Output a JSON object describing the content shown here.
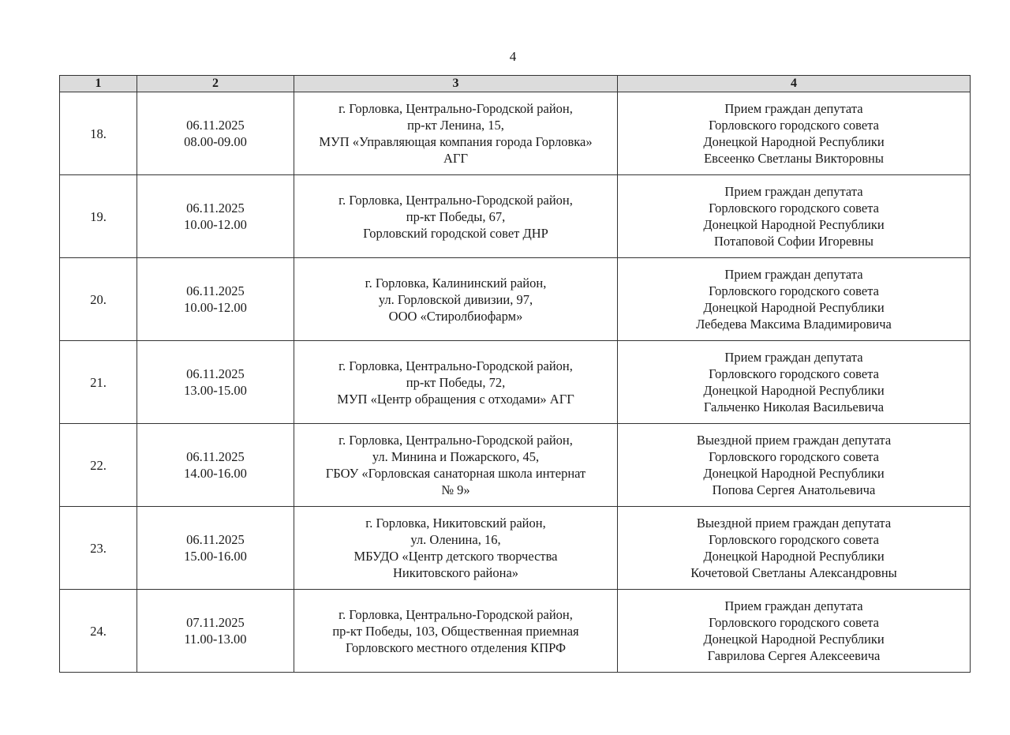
{
  "page_number": "4",
  "table": {
    "headers": [
      "1",
      "2",
      "3",
      "4"
    ],
    "rows": [
      {
        "num": "18.",
        "datetime": "06.11.2025\n08.00-09.00",
        "place": "г. Горловка, Центрально-Городской район,\nпр-кт Ленина, 15,\nМУП «Управляющая компания города Горловка»\nАГГ",
        "event": "Прием граждан депутата\nГорловского городского совета\nДонецкой Народной Республики\nЕвсеенко Светланы Викторовны"
      },
      {
        "num": "19.",
        "datetime": "06.11.2025\n10.00-12.00",
        "place": "г. Горловка, Центрально-Городской район,\nпр-кт Победы, 67,\nГорловский городской совет ДНР",
        "event": "Прием граждан депутата\nГорловского городского совета\nДонецкой Народной Республики\nПотаповой Софии Игоревны"
      },
      {
        "num": "20.",
        "datetime": "06.11.2025\n10.00-12.00",
        "place": "г. Горловка, Калининский район,\nул. Горловской дивизии, 97,\nООО «Стиролбиофарм»",
        "event": "Прием граждан депутата\nГорловского городского совета\nДонецкой Народной Республики\nЛебедева Максима Владимировича"
      },
      {
        "num": "21.",
        "datetime": "06.11.2025\n13.00-15.00",
        "place": "г. Горловка, Центрально-Городской район,\nпр-кт Победы, 72,\nМУП «Центр обращения с отходами» АГГ",
        "event": "Прием граждан депутата\nГорловского городского совета\nДонецкой Народной Республики\nГальченко Николая Васильевича"
      },
      {
        "num": "22.",
        "datetime": "06.11.2025\n14.00-16.00",
        "place": "г. Горловка, Центрально-Городской район,\nул. Минина и Пожарского, 45,\nГБОУ «Горловская санаторная школа интернат\n№ 9»",
        "event": "Выездной прием граждан депутата\nГорловского городского совета\nДонецкой Народной Республики\nПопова Сергея Анатольевича"
      },
      {
        "num": "23.",
        "datetime": "06.11.2025\n15.00-16.00",
        "place": "г. Горловка, Никитовский район,\nул. Оленина, 16,\nМБУДО «Центр детского творчества\nНикитовского района»",
        "event": "Выездной прием граждан депутата\nГорловского городского совета\nДонецкой Народной Республики\nКочетовой Светланы Александровны"
      },
      {
        "num": "24.",
        "datetime": "07.11.2025\n11.00-13.00",
        "place": "г. Горловка, Центрально-Городской район,\nпр-кт Победы, 103, Общественная приемная\nГорловского местного отделения КПРФ",
        "event": "Прием граждан депутата\nГорловского городского совета\nДонецкой Народной Республики\nГаврилова Сергея Алексеевича"
      }
    ]
  }
}
